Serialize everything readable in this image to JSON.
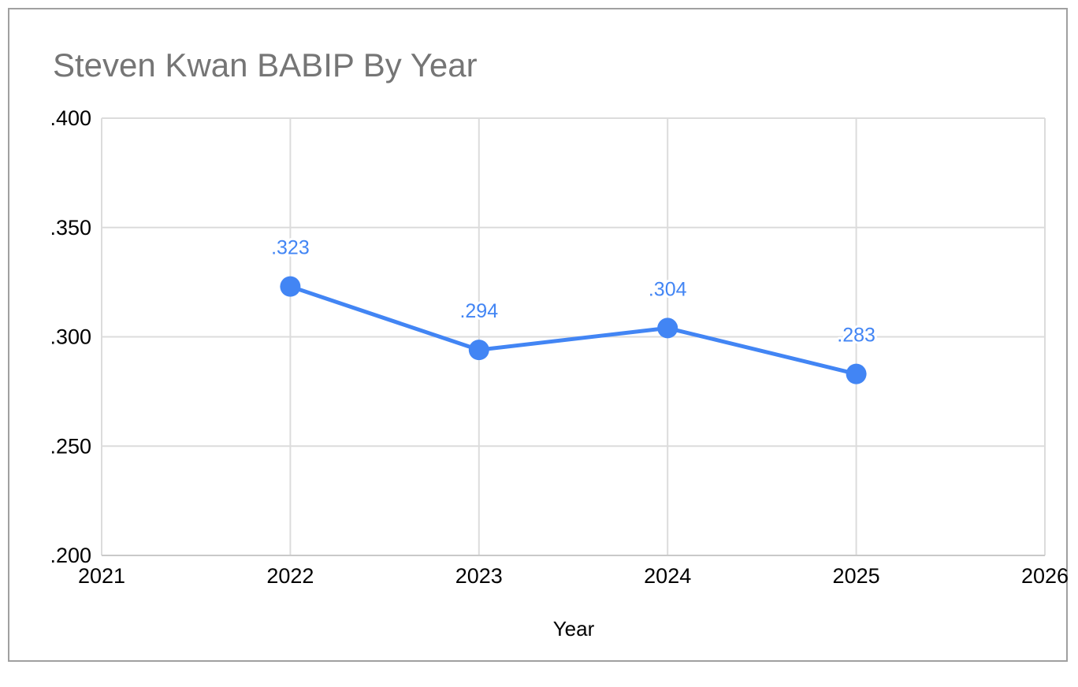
{
  "page": {
    "background": "#ffffff",
    "frame_border_color": "#a0a0a0"
  },
  "chart_data": {
    "type": "line",
    "title": "Steven Kwan BABIP By Year",
    "xlabel": "Year",
    "ylabel": "",
    "categories": [
      2022,
      2023,
      2024,
      2025
    ],
    "values": [
      0.323,
      0.294,
      0.304,
      0.283
    ],
    "point_labels": [
      ".323",
      ".294",
      ".304",
      ".283"
    ],
    "x_ticks": [
      2021,
      2022,
      2023,
      2024,
      2025,
      2026
    ],
    "xlim": [
      2021,
      2026
    ],
    "y_ticks": [
      ".200",
      ".250",
      ".300",
      ".350",
      ".400"
    ],
    "ylim": [
      0.2,
      0.4
    ],
    "grid": true,
    "legend": "none",
    "colors": {
      "series": "#4285f4",
      "data_label": "#4285f4",
      "title": "#757575",
      "axis_text": "#000000",
      "gridline": "#dcdcdc",
      "axis_line": "#c9c9c9"
    }
  }
}
